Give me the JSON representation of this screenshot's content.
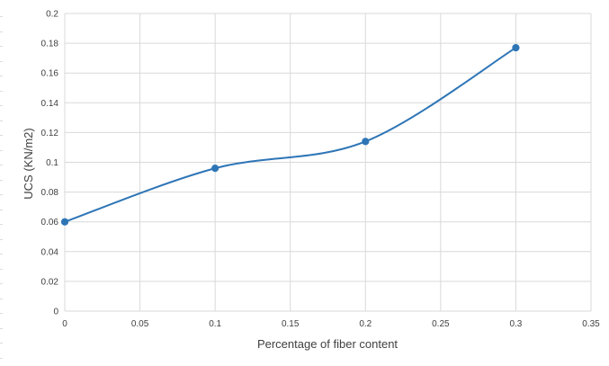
{
  "chart_data": {
    "type": "line",
    "title": "",
    "xlabel": "Percentage of fiber content",
    "ylabel": "UCS (KN/m2)",
    "xlim": [
      0,
      0.35
    ],
    "ylim": [
      0,
      0.2
    ],
    "x_ticks": [
      "0",
      "0.05",
      "0.1",
      "0.15",
      "0.2",
      "0.25",
      "0.3",
      "0.35"
    ],
    "y_ticks": [
      "0",
      "0.02",
      "0.04",
      "0.06",
      "0.08",
      "0.1",
      "0.12",
      "0.14",
      "0.16",
      "0.18",
      "0.2"
    ],
    "smoothed": true,
    "grid": true,
    "legend": "none",
    "series": [
      {
        "color": "#2e75b6",
        "x": [
          0,
          0.1,
          0.2,
          0.3
        ],
        "y": [
          0.06,
          0.096,
          0.114,
          0.177
        ]
      }
    ]
  }
}
